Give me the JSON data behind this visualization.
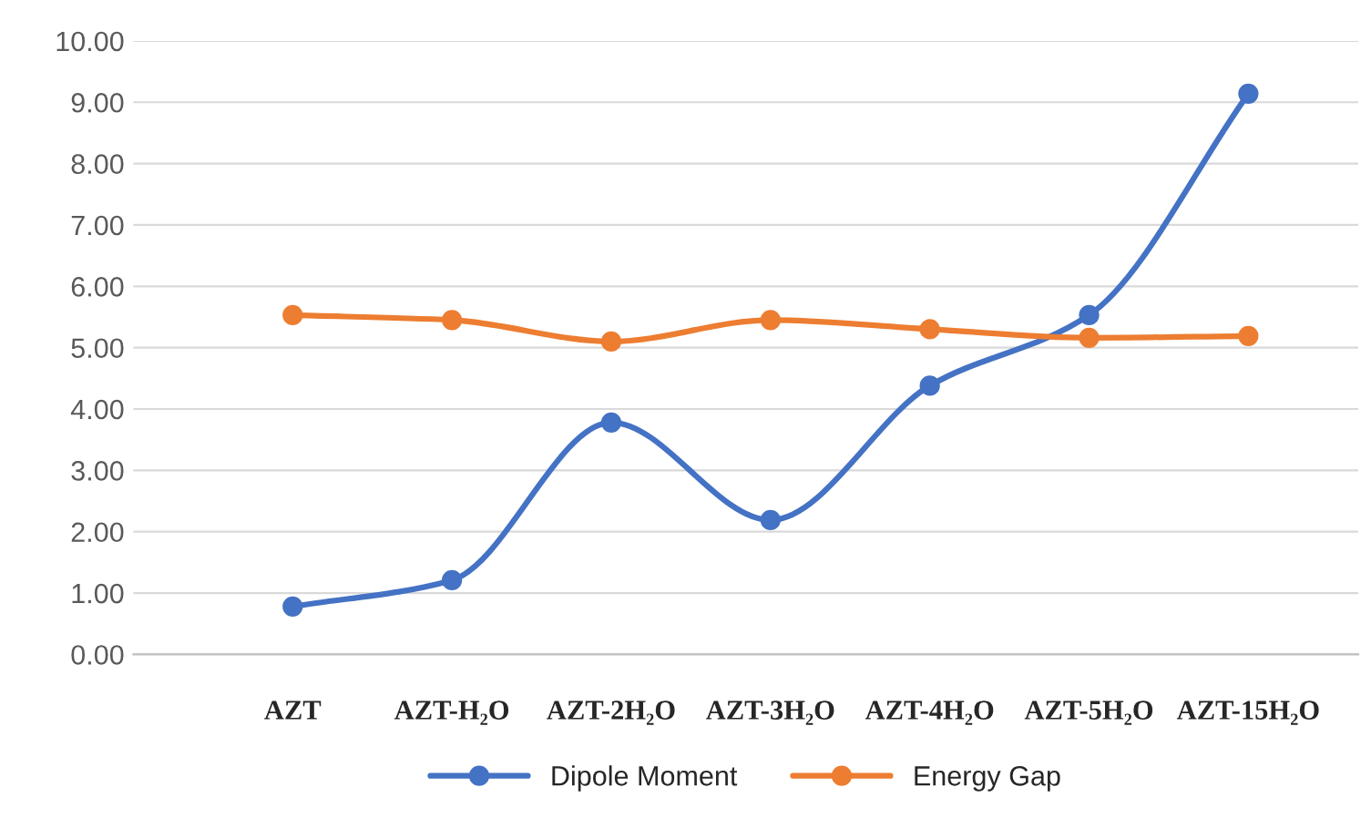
{
  "chart_data": {
    "type": "line",
    "categories": [
      "AZT",
      "AZT-H₂O",
      "AZT-2H₂O",
      "AZT-3H₂O",
      "AZT-4H₂O",
      "AZT-5H₂O",
      "AZT-15H₂O"
    ],
    "series": [
      {
        "name": "Dipole Moment",
        "color": "#4472c4",
        "values": [
          0.78,
          1.21,
          3.78,
          2.19,
          4.38,
          5.53,
          9.14
        ]
      },
      {
        "name": "Energy Gap",
        "color": "#ed7d31",
        "values": [
          5.53,
          5.45,
          5.1,
          5.45,
          5.3,
          5.16,
          5.19
        ]
      }
    ],
    "ylim": [
      0,
      10
    ],
    "yticks": [
      {
        "value": 0,
        "label": "0.00"
      },
      {
        "value": 1,
        "label": "1.00"
      },
      {
        "value": 2,
        "label": "2.00"
      },
      {
        "value": 3,
        "label": "3.00"
      },
      {
        "value": 4,
        "label": "4.00"
      },
      {
        "value": 5,
        "label": "5.00"
      },
      {
        "value": 6,
        "label": "6.00"
      },
      {
        "value": 7,
        "label": "7.00"
      },
      {
        "value": 8,
        "label": "8.00"
      },
      {
        "value": 9,
        "label": "9.00"
      },
      {
        "value": 10,
        "label": "10.00"
      }
    ],
    "grid": "y",
    "legend": "bottom",
    "marker": "circle",
    "line_style": "solid"
  }
}
